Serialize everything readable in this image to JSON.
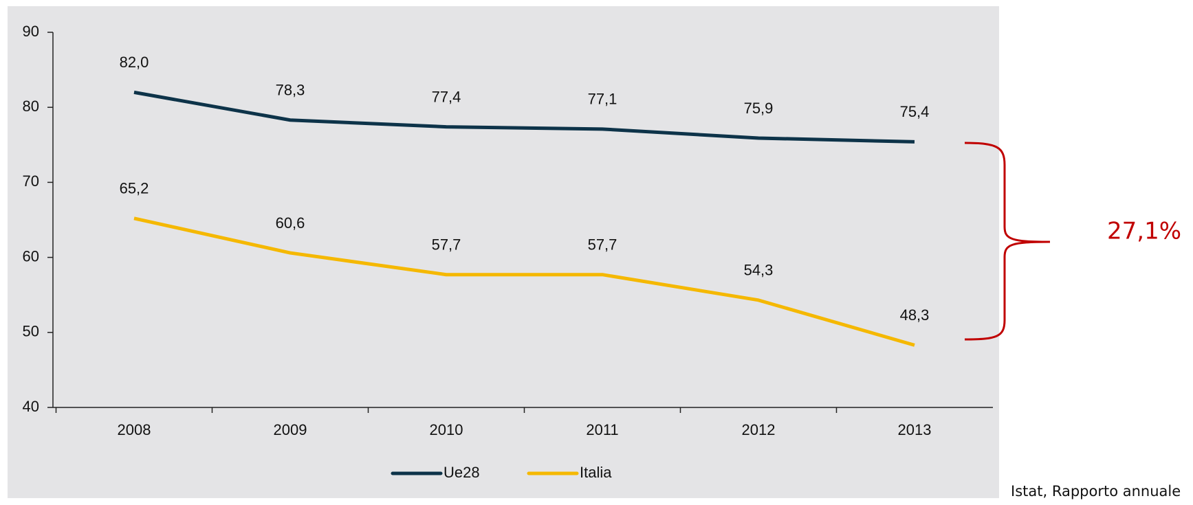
{
  "chart_data": {
    "type": "line",
    "categories": [
      "2008",
      "2009",
      "2010",
      "2011",
      "2012",
      "2013"
    ],
    "series": [
      {
        "name": "Ue28",
        "color": "#0d3349",
        "values": [
          82.0,
          78.3,
          77.4,
          77.1,
          75.9,
          75.4
        ],
        "value_labels": [
          "82,0",
          "78,3",
          "77,4",
          "77,1",
          "75,9",
          "75,4"
        ]
      },
      {
        "name": "Italia",
        "color": "#f5b800",
        "values": [
          65.2,
          60.6,
          57.7,
          57.7,
          54.3,
          48.3
        ],
        "value_labels": [
          "65,2",
          "60,6",
          "57,7",
          "57,7",
          "54,3",
          "48,3"
        ]
      }
    ],
    "ylim": [
      40,
      90
    ],
    "yticks": [
      40,
      50,
      60,
      70,
      80,
      90
    ],
    "annotation": "27,1%",
    "source": "Istat, Rapporto annuale"
  }
}
